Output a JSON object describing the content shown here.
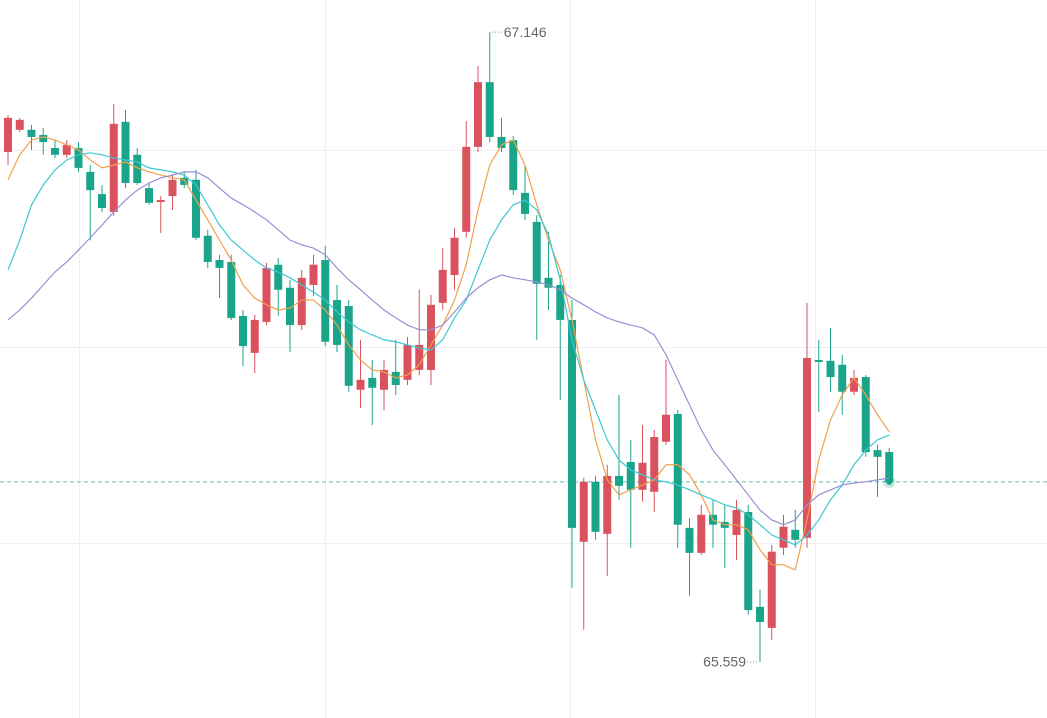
{
  "chart_data": {
    "type": "candlestick",
    "ylim": [
      65.418,
      67.227
    ],
    "up_color": "#d9525e",
    "down_color": "#1aa58a",
    "last_price_line": true,
    "open": [
      66.844,
      66.9,
      66.9,
      66.887,
      66.854,
      66.837,
      66.854,
      66.794,
      66.738,
      66.693,
      66.92,
      66.837,
      66.753,
      66.718,
      66.733,
      66.779,
      66.774,
      66.633,
      66.572,
      66.567,
      66.431,
      66.338,
      66.416,
      66.56,
      66.502,
      66.408,
      66.509,
      66.572,
      66.471,
      66.456,
      66.245,
      66.275,
      66.245,
      66.29,
      66.27,
      66.295,
      66.295,
      66.464,
      66.534,
      66.643,
      66.857,
      67.02,
      66.882,
      66.874,
      66.741,
      66.668,
      66.527,
      66.509,
      66.421,
      65.862,
      66.013,
      65.882,
      66.028,
      66.063,
      65.993,
      65.988,
      66.114,
      66.184,
      65.897,
      65.834,
      65.93,
      65.912,
      65.879,
      65.937,
      65.698,
      65.645,
      65.847,
      65.892,
      65.872,
      66.32,
      66.318,
      66.308,
      66.24,
      66.277,
      66.093,
      66.088
    ],
    "high": [
      66.937,
      66.93,
      66.912,
      66.905,
      66.874,
      66.874,
      66.869,
      66.811,
      66.761,
      66.965,
      66.95,
      66.854,
      66.766,
      66.733,
      66.789,
      66.794,
      66.799,
      66.648,
      66.585,
      66.585,
      66.446,
      66.434,
      66.565,
      66.577,
      66.522,
      66.547,
      66.585,
      66.607,
      66.509,
      66.471,
      66.371,
      66.32,
      66.32,
      66.371,
      66.378,
      66.497,
      66.484,
      66.602,
      66.653,
      66.922,
      67.061,
      67.146,
      66.93,
      66.884,
      66.811,
      66.685,
      66.643,
      66.534,
      66.471,
      66.023,
      66.028,
      66.056,
      66.232,
      66.119,
      66.156,
      66.144,
      66.32,
      66.194,
      65.922,
      65.955,
      65.968,
      65.955,
      65.968,
      65.955,
      65.741,
      65.854,
      65.93,
      65.942,
      66.464,
      66.371,
      66.401,
      66.333,
      66.295,
      66.282,
      66.106,
      66.099
    ],
    "low": [
      66.811,
      66.894,
      66.849,
      66.837,
      66.829,
      66.829,
      66.794,
      66.622,
      66.693,
      66.683,
      66.753,
      66.761,
      66.711,
      66.64,
      66.698,
      66.753,
      66.622,
      66.552,
      66.476,
      66.421,
      66.305,
      66.287,
      66.408,
      66.431,
      66.34,
      66.396,
      66.481,
      66.355,
      66.34,
      66.24,
      66.199,
      66.156,
      66.194,
      66.232,
      66.257,
      66.282,
      66.257,
      66.446,
      66.497,
      66.628,
      66.844,
      66.869,
      66.844,
      66.736,
      66.673,
      66.371,
      66.446,
      66.219,
      65.746,
      65.64,
      65.867,
      65.776,
      65.968,
      65.847,
      65.963,
      65.937,
      66.106,
      65.847,
      65.726,
      65.829,
      65.847,
      65.796,
      65.816,
      65.678,
      65.559,
      65.615,
      65.829,
      65.847,
      65.847,
      66.189,
      66.24,
      66.182,
      66.232,
      66.076,
      65.975,
      66.008
    ],
    "close": [
      66.93,
      66.925,
      66.882,
      66.869,
      66.837,
      66.862,
      66.804,
      66.748,
      66.703,
      66.915,
      66.766,
      66.766,
      66.716,
      66.723,
      66.774,
      66.761,
      66.628,
      66.567,
      66.552,
      66.426,
      66.355,
      66.421,
      66.552,
      66.497,
      66.408,
      66.527,
      66.56,
      66.366,
      66.358,
      66.255,
      66.27,
      66.25,
      66.295,
      66.257,
      66.358,
      66.358,
      66.459,
      66.547,
      66.628,
      66.857,
      67.02,
      66.882,
      66.854,
      66.748,
      66.688,
      66.512,
      66.502,
      66.421,
      65.897,
      66.013,
      65.887,
      66.028,
      66.003,
      65.993,
      66.061,
      66.126,
      66.182,
      65.905,
      65.834,
      65.93,
      65.905,
      65.897,
      65.942,
      65.69,
      65.66,
      65.837,
      65.9,
      65.867,
      66.325,
      66.315,
      66.277,
      66.24,
      66.275,
      66.088,
      66.076,
      66.013
    ],
    "series": [
      {
        "color": "#f0a04b",
        "values": [
          66.774,
          66.837,
          66.874,
          66.882,
          66.874,
          66.862,
          66.849,
          66.824,
          66.804,
          66.811,
          66.819,
          66.804,
          66.794,
          66.786,
          66.779,
          66.774,
          66.723,
          66.673,
          66.622,
          66.572,
          66.509,
          66.476,
          66.459,
          66.446,
          66.451,
          66.471,
          66.471,
          66.446,
          66.408,
          66.358,
          66.32,
          66.295,
          66.29,
          66.275,
          66.282,
          66.308,
          66.358,
          66.408,
          66.471,
          66.56,
          66.698,
          66.811,
          66.862,
          66.874,
          66.811,
          66.711,
          66.622,
          66.547,
          66.421,
          66.27,
          66.119,
          66.018,
          65.98,
          65.993,
          66.005,
          66.018,
          66.056,
          66.056,
          66.031,
          65.98,
          65.917,
          65.905,
          65.905,
          65.892,
          65.842,
          65.804,
          65.804,
          65.791,
          65.917,
          66.068,
          66.169,
          66.232,
          66.275,
          66.232,
          66.182,
          66.139
        ]
      },
      {
        "color": "#3cc8d2",
        "values": [
          66.547,
          66.622,
          66.711,
          66.761,
          66.799,
          66.824,
          66.837,
          66.842,
          66.837,
          66.829,
          66.824,
          66.819,
          66.804,
          66.799,
          66.794,
          66.786,
          66.761,
          66.711,
          66.66,
          66.622,
          66.597,
          66.572,
          66.552,
          66.542,
          66.527,
          66.509,
          66.491,
          66.471,
          66.441,
          66.416,
          66.396,
          66.383,
          66.371,
          66.366,
          66.358,
          66.35,
          66.345,
          66.371,
          66.426,
          66.471,
          66.547,
          66.622,
          66.673,
          66.711,
          66.723,
          66.698,
          66.635,
          66.522,
          66.371,
          66.27,
          66.194,
          66.119,
          66.068,
          66.043,
          66.031,
          66.018,
          66.013,
          66.005,
          65.993,
          65.98,
          65.968,
          65.955,
          65.947,
          65.93,
          65.905,
          65.879,
          65.867,
          65.854,
          65.879,
          65.917,
          65.968,
          66.005,
          66.056,
          66.093,
          66.119,
          66.131
        ]
      },
      {
        "color": "#9b8fd6",
        "values": [
          66.421,
          66.446,
          66.476,
          66.509,
          66.542,
          66.567,
          66.597,
          66.628,
          66.66,
          66.693,
          66.723,
          66.748,
          66.766,
          66.779,
          66.786,
          66.794,
          66.794,
          66.779,
          66.753,
          66.728,
          66.711,
          66.693,
          66.673,
          66.648,
          66.622,
          66.61,
          66.602,
          66.585,
          66.552,
          66.522,
          66.497,
          66.471,
          66.446,
          66.426,
          66.408,
          66.396,
          66.396,
          66.408,
          66.441,
          66.476,
          66.502,
          66.522,
          66.534,
          66.527,
          66.522,
          66.517,
          66.509,
          66.497,
          66.476,
          66.459,
          66.441,
          66.426,
          66.416,
          66.408,
          66.401,
          66.383,
          66.333,
          66.27,
          66.207,
          66.144,
          66.093,
          66.056,
          66.018,
          65.98,
          65.942,
          65.917,
          65.905,
          65.917,
          65.955,
          65.98,
          65.993,
          66.005,
          66.01,
          66.013,
          66.018,
          66.023
        ]
      }
    ]
  }
}
